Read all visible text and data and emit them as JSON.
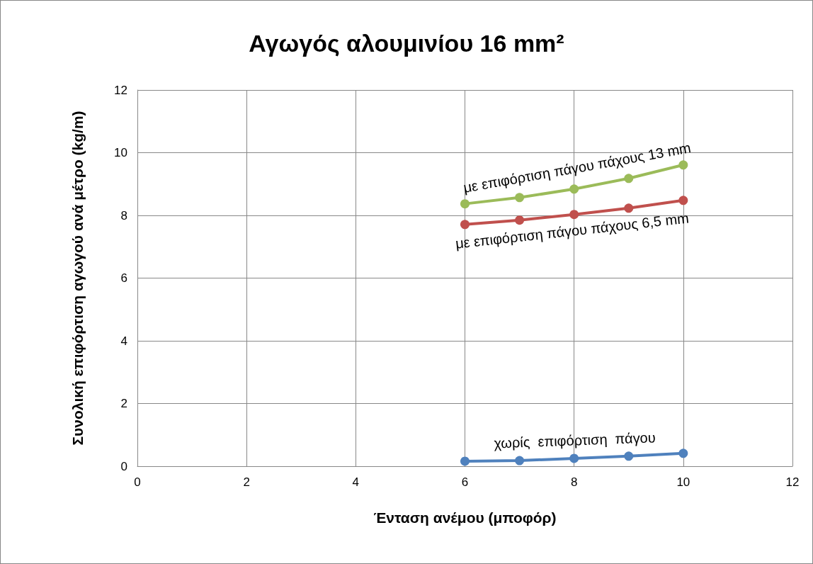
{
  "chart_data": {
    "type": "line",
    "title": "Αγωγός αλουμινίου 16 mm²",
    "xlabel": "Ένταση ανέμου (μποφόρ)",
    "ylabel": "Συνολική επιφόρτιση αγωγού ανά μέτρο (kg/m)",
    "x": [
      6,
      7,
      8,
      9,
      10
    ],
    "series": [
      {
        "name": "με επιφόρτιση πάγου πάχους 13 mm",
        "color": "#9bbb59",
        "values": [
          8.37,
          8.57,
          8.84,
          9.18,
          9.61
        ]
      },
      {
        "name": "με επιφόρτιση πάγου πάχους 6,5 mm",
        "color": "#c0504d",
        "values": [
          7.71,
          7.85,
          8.03,
          8.23,
          8.48
        ]
      },
      {
        "name": "χωρίς  επιφόρτιση  πάγου",
        "color": "#4f81bd",
        "values": [
          0.16,
          0.18,
          0.25,
          0.32,
          0.41
        ]
      }
    ],
    "xlim": [
      0,
      12
    ],
    "xticks": [
      0,
      2,
      4,
      6,
      8,
      10,
      12
    ],
    "ylim": [
      0,
      12
    ],
    "yticks": [
      0,
      2,
      4,
      6,
      8,
      10,
      12
    ],
    "grid": true,
    "legend": false,
    "marker": "circle",
    "line_style": "solid"
  }
}
